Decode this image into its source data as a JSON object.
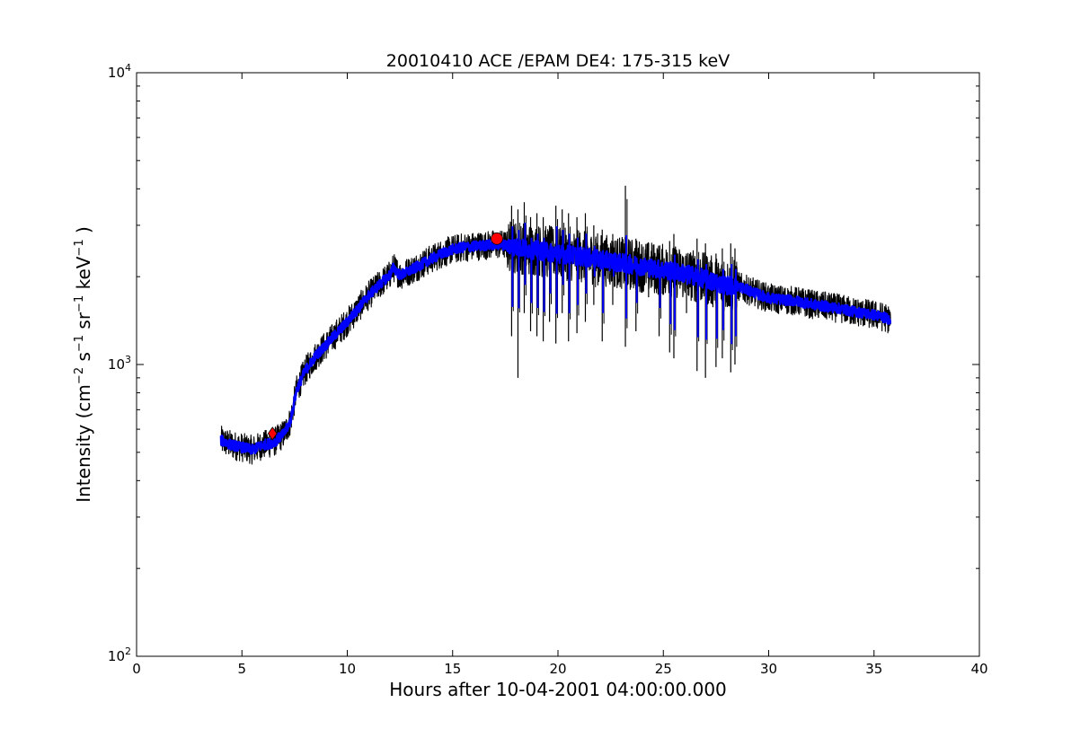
{
  "chart_data": {
    "type": "line",
    "title": "20010410 ACE /EPAM DE4: 175-315 keV",
    "xlabel": "Hours after 10-04-2001 04:00:00.000",
    "ylabel_parts": {
      "prefix": "Intensity (cm",
      "exp1": "−2",
      "s": " s",
      "exp2": "−1",
      "sr": " sr",
      "exp3": "−1",
      "kev": " keV",
      "exp4": "−1",
      "suffix": " )"
    },
    "x_range": [
      0,
      40
    ],
    "y_range": [
      100,
      10000
    ],
    "y_scale": "log",
    "x_ticks": [
      0,
      5,
      10,
      15,
      20,
      25,
      30,
      35,
      40
    ],
    "x_tick_labels": [
      "0",
      "5",
      "10",
      "15",
      "20",
      "25",
      "30",
      "35",
      "40"
    ],
    "y_ticks": [
      {
        "value": 100,
        "base": "10",
        "exp": "2"
      },
      {
        "value": 1000,
        "base": "10",
        "exp": "3"
      },
      {
        "value": 10000,
        "base": "10",
        "exp": "4"
      }
    ],
    "grid": false,
    "series": [
      {
        "color": "#000000",
        "x": [
          4.0,
          4.5,
          5.0,
          5.5,
          6.0,
          6.5,
          7.0,
          7.3,
          7.6,
          8.0,
          8.5,
          9.0,
          9.5,
          10.0,
          10.5,
          11.0,
          11.5,
          12.0,
          12.2,
          12.5,
          13.0,
          13.5,
          14.0,
          14.5,
          15.0,
          15.5,
          16.0,
          16.5,
          17.0,
          17.5,
          18.0,
          18.5,
          19.0,
          19.5,
          20.0,
          20.5,
          21.0,
          21.5,
          22.0,
          22.5,
          23.0,
          23.5,
          24.0,
          24.5,
          25.0,
          25.5,
          26.0,
          26.5,
          27.0,
          27.5,
          28.0,
          28.5,
          29.0,
          29.5,
          30.0,
          30.5,
          31.0,
          31.5,
          32.0,
          32.5,
          33.0,
          33.5,
          34.0,
          34.5,
          35.0,
          35.5,
          35.8
        ],
        "y": [
          550,
          530,
          520,
          510,
          530,
          540,
          580,
          640,
          820,
          950,
          1070,
          1170,
          1280,
          1400,
          1550,
          1720,
          1870,
          2020,
          2150,
          2020,
          2100,
          2200,
          2300,
          2400,
          2480,
          2520,
          2540,
          2560,
          2580,
          2570,
          2520,
          2490,
          2460,
          2430,
          2400,
          2380,
          2350,
          2320,
          2290,
          2260,
          2230,
          2200,
          2170,
          2140,
          2110,
          2080,
          2050,
          2010,
          1960,
          1900,
          1870,
          1860,
          1800,
          1740,
          1690,
          1670,
          1660,
          1640,
          1610,
          1590,
          1570,
          1550,
          1520,
          1500,
          1480,
          1450,
          1420
        ],
        "noise": 0.05
      },
      {
        "color": "#0000ff",
        "x": [
          4.0,
          4.5,
          5.0,
          5.5,
          6.0,
          6.5,
          7.0,
          7.3,
          7.6,
          8.0,
          8.5,
          9.0,
          9.5,
          10.0,
          10.5,
          11.0,
          11.5,
          12.0,
          12.2,
          12.5,
          13.0,
          13.5,
          14.0,
          14.5,
          15.0,
          15.5,
          16.0,
          16.5,
          17.0,
          17.5,
          18.0,
          18.5,
          19.0,
          19.5,
          20.0,
          20.5,
          21.0,
          21.5,
          22.0,
          22.5,
          23.0,
          23.5,
          24.0,
          24.5,
          25.0,
          25.5,
          26.0,
          26.5,
          27.0,
          27.5,
          28.0,
          28.5,
          29.0,
          29.5,
          30.0,
          30.5,
          31.0,
          31.5,
          32.0,
          32.5,
          33.0,
          33.5,
          34.0,
          34.5,
          35.0,
          35.5,
          35.8
        ],
        "y": [
          550,
          530,
          520,
          510,
          530,
          540,
          580,
          640,
          820,
          950,
          1070,
          1170,
          1280,
          1400,
          1550,
          1720,
          1870,
          2020,
          2150,
          2020,
          2100,
          2200,
          2300,
          2400,
          2480,
          2520,
          2540,
          2560,
          2580,
          2570,
          2520,
          2490,
          2460,
          2430,
          2400,
          2380,
          2350,
          2320,
          2290,
          2260,
          2230,
          2200,
          2170,
          2140,
          2110,
          2080,
          2050,
          2010,
          1960,
          1900,
          1870,
          1860,
          1800,
          1740,
          1690,
          1670,
          1660,
          1640,
          1610,
          1590,
          1570,
          1550,
          1520,
          1500,
          1480,
          1450,
          1420
        ],
        "noise": 0.018
      }
    ],
    "spike_region_x": [
      17.6,
      28.5
    ],
    "spikes": [
      {
        "x": 17.8,
        "low": 1250,
        "high": 3500
      },
      {
        "x": 18.1,
        "low": 900,
        "high": 3400
      },
      {
        "x": 18.4,
        "low": 1500,
        "high": 3600
      },
      {
        "x": 18.7,
        "low": 1300,
        "high": 3200
      },
      {
        "x": 19.0,
        "low": 1250,
        "high": 3300
      },
      {
        "x": 19.3,
        "low": 1200,
        "high": 3200
      },
      {
        "x": 19.6,
        "low": 1400,
        "high": 3000
      },
      {
        "x": 19.9,
        "low": 1180,
        "high": 3500
      },
      {
        "x": 20.2,
        "low": 1500,
        "high": 3400
      },
      {
        "x": 20.5,
        "low": 1200,
        "high": 3300
      },
      {
        "x": 20.9,
        "low": 1280,
        "high": 3200
      },
      {
        "x": 21.3,
        "low": 1400,
        "high": 3300
      },
      {
        "x": 21.7,
        "low": 1600,
        "high": 3000
      },
      {
        "x": 22.1,
        "low": 1200,
        "high": 2900
      },
      {
        "x": 22.6,
        "low": 1600,
        "high": 2800
      },
      {
        "x": 23.2,
        "low": 1150,
        "high": 4100
      },
      {
        "x": 23.7,
        "low": 1300,
        "high": 2700
      },
      {
        "x": 24.3,
        "low": 1700,
        "high": 2500
      },
      {
        "x": 24.8,
        "low": 1250,
        "high": 2400
      },
      {
        "x": 25.3,
        "low": 1100,
        "high": 2650
      },
      {
        "x": 25.5,
        "low": 1050,
        "high": 2800
      },
      {
        "x": 26.1,
        "low": 1500,
        "high": 2400
      },
      {
        "x": 26.6,
        "low": 950,
        "high": 2700
      },
      {
        "x": 27.0,
        "low": 900,
        "high": 2600
      },
      {
        "x": 27.5,
        "low": 980,
        "high": 2400
      },
      {
        "x": 27.8,
        "low": 1050,
        "high": 2500
      },
      {
        "x": 28.2,
        "low": 940,
        "high": 2600
      },
      {
        "x": 28.4,
        "low": 1000,
        "high": 2500
      }
    ],
    "markers": [
      {
        "shape": "diamond",
        "x": 6.45,
        "y": 580,
        "color": "#ff0000"
      },
      {
        "shape": "circle",
        "x": 17.1,
        "y": 2700,
        "color": "#ff0000"
      }
    ]
  }
}
